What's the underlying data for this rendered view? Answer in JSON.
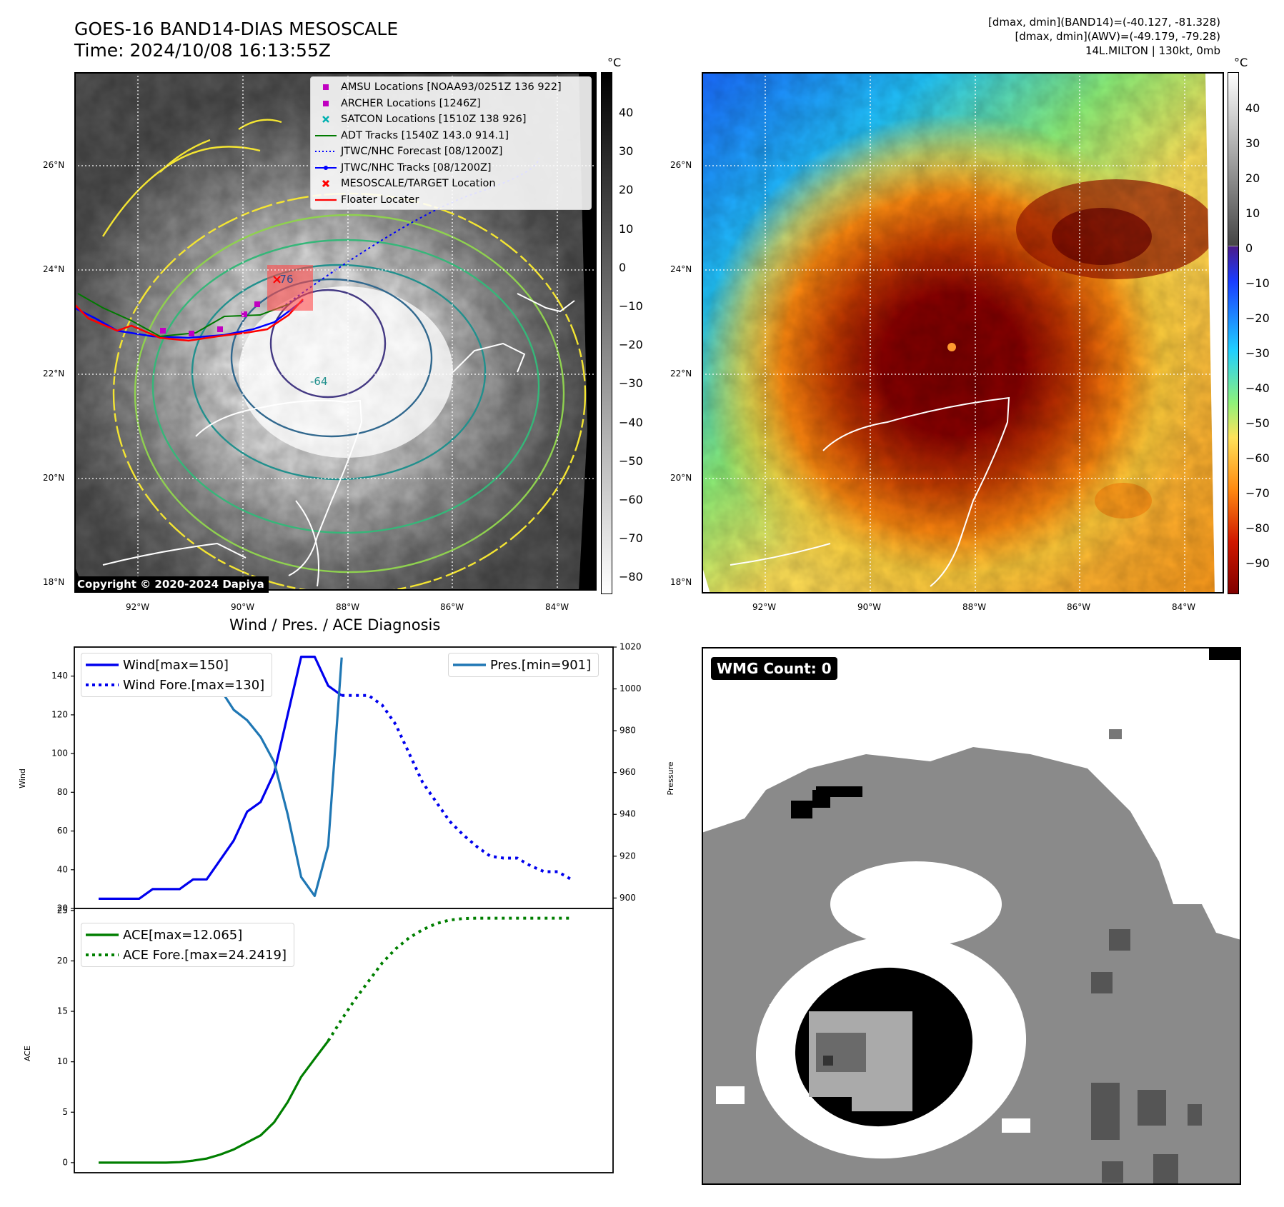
{
  "left_title": {
    "line1": "GOES-16 BAND14-DIAS MESOSCALE",
    "line2": "Time: 2024/10/08 16:13:55Z"
  },
  "right_title": {
    "line1": "[dmax, dmin](BAND14)=(-40.127, -81.328)",
    "line2": "[dmax, dmin](AWV)=(-49.179, -79.28)",
    "line3": "14L.MILTON | 130kt, 0mb"
  },
  "map": {
    "lat_labels": [
      "26°N",
      "24°N",
      "22°N",
      "20°N",
      "18°N"
    ],
    "lon_labels": [
      "92°W",
      "90°W",
      "88°W",
      "86°W",
      "84°W"
    ],
    "copyright": "Copyright © 2020-2024 Dapiya",
    "contour_labels": [
      "-76",
      "-64"
    ]
  },
  "colorbar_gray": {
    "unit": "°C",
    "ticks": [
      "40",
      "30",
      "20",
      "10",
      "0",
      "−10",
      "−20",
      "−30",
      "−40",
      "−50",
      "−60",
      "−70",
      "−80"
    ]
  },
  "colorbar_jet": {
    "unit": "°C",
    "ticks": [
      "40",
      "30",
      "20",
      "10",
      "0",
      "−10",
      "−20",
      "−30",
      "−40",
      "−50",
      "−60",
      "−70",
      "−80",
      "−90"
    ]
  },
  "legend_map": {
    "items": [
      {
        "label": "AMSU Locations [NOAA93/0251Z 136 922]",
        "color": "#c000c0"
      },
      {
        "label": "ARCHER Locations [1246Z]",
        "color": "#c000c0"
      },
      {
        "label": "SATCON Locations [1510Z 138 926]",
        "color": "#00b0b0"
      },
      {
        "label": "ADT Tracks [1540Z 143.0 914.1]",
        "color": "#007a00"
      },
      {
        "label": "JTWC/NHC Forecast [08/1200Z]",
        "color": "#0000ff"
      },
      {
        "label": "JTWC/NHC Tracks [08/1200Z]",
        "color": "#0000ff"
      },
      {
        "label": "MESOSCALE/TARGET Location",
        "color": "#ff0000"
      },
      {
        "label": "Floater Locater",
        "color": "#ff0000"
      }
    ]
  },
  "diag_title": "Wind / Pres. / ACE Diagnosis",
  "wmg_label": "WMG Count: 0",
  "chart_data": [
    {
      "type": "line",
      "title": "Wind / Pres. / ACE Diagnosis",
      "ylabel": "Wind",
      "ylim": [
        20,
        155
      ],
      "yticks": [
        "20",
        "40",
        "60",
        "80",
        "100",
        "120",
        "140"
      ],
      "series": [
        {
          "name": "Wind[max=150]",
          "color": "#0000ee",
          "style": "solid",
          "values": [
            25,
            25,
            25,
            25,
            30,
            30,
            30,
            35,
            35,
            45,
            55,
            70,
            75,
            90,
            120,
            150,
            150,
            135,
            130
          ]
        },
        {
          "name": "Wind Fore.[max=130]",
          "color": "#0000ee",
          "style": "dotted",
          "start_index": 18,
          "values": [
            130,
            130,
            130,
            125,
            115,
            100,
            85,
            75,
            65,
            58,
            52,
            47,
            46,
            46,
            42,
            39,
            39,
            35
          ]
        }
      ],
      "secondary": {
        "ylabel": "Pressure",
        "ylim": [
          895,
          1020
        ],
        "yticks": [
          "900",
          "920",
          "940",
          "960",
          "980",
          "1000",
          "1020"
        ],
        "series": [
          {
            "name": "Pres.[min=901]",
            "color": "#1f77b4",
            "style": "solid",
            "values": [
              1015,
              1015,
              1015,
              1015,
              1010,
              1010,
              1008,
              1006,
              1006,
              1000,
              990,
              985,
              977,
              965,
              940,
              910,
              901,
              925,
              1015
            ]
          }
        ]
      }
    },
    {
      "type": "line",
      "ylabel": "ACE",
      "ylim": [
        -1,
        25.2
      ],
      "yticks": [
        "0",
        "5",
        "10",
        "15",
        "20",
        "25"
      ],
      "series": [
        {
          "name": "ACE[max=12.065]",
          "color": "#007f00",
          "style": "solid",
          "values": [
            0,
            0,
            0,
            0,
            0,
            0,
            0.05,
            0.2,
            0.4,
            0.8,
            1.3,
            2.0,
            2.7,
            4.0,
            6.0,
            8.5,
            10.3,
            12.065
          ]
        },
        {
          "name": "ACE Fore.[max=24.2419]",
          "color": "#007f00",
          "style": "dotted",
          "start_index": 17,
          "values": [
            12.065,
            14.2,
            16.2,
            18.0,
            19.8,
            21.2,
            22.3,
            23.1,
            23.7,
            24.05,
            24.2,
            24.24,
            24.24,
            24.24,
            24.24,
            24.24,
            24.24,
            24.24,
            24.24
          ]
        }
      ]
    }
  ]
}
